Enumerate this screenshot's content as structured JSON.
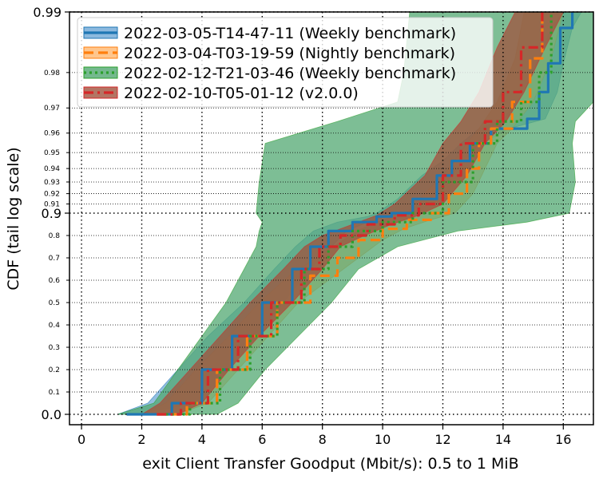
{
  "chart_data": {
    "type": "line",
    "xlabel": "exit Client Transfer Goodput (Mbit/s): 0.5 to 1 MiB",
    "ylabel": "CDF (tail log scale)",
    "xlim": [
      -0.4,
      17
    ],
    "xticks": [
      0,
      2,
      4,
      6,
      8,
      10,
      12,
      14,
      16
    ],
    "xtick_labels": [
      "0",
      "2",
      "4",
      "6",
      "8",
      "10",
      "12",
      "14",
      "16"
    ],
    "y_scale": "tail-log",
    "ylim": [
      -0.03,
      0.99
    ],
    "yticks_major": [
      0.0,
      0.9,
      0.99
    ],
    "yticks_major_labels": [
      "0.0",
      "0.9",
      "0.99"
    ],
    "yticks_minor": [
      0.1,
      0.2,
      0.3,
      0.4,
      0.5,
      0.6,
      0.7,
      0.8,
      0.91,
      0.92,
      0.93,
      0.94,
      0.95,
      0.96,
      0.97,
      0.98
    ],
    "yticks_minor_labels": [
      "0.1",
      "0.2",
      "0.3",
      "0.4",
      "0.5",
      "0.6",
      "0.7",
      "0.8",
      "0.91",
      "0.92",
      "0.93",
      "0.94",
      "0.95",
      "0.96",
      "0.97",
      "0.98"
    ],
    "grid": true,
    "legend_position": "top-left",
    "series": [
      {
        "name": "2022-03-05-T14-47-11 (Weekly benchmark)",
        "color": "#1f77b4",
        "dash": "solid",
        "points": [
          [
            1.5,
            0.0
          ],
          [
            3.0,
            0.05
          ],
          [
            4.0,
            0.2
          ],
          [
            5.0,
            0.35
          ],
          [
            6.0,
            0.5
          ],
          [
            7.0,
            0.65
          ],
          [
            7.6,
            0.75
          ],
          [
            8.2,
            0.82
          ],
          [
            9.0,
            0.86
          ],
          [
            9.8,
            0.885
          ],
          [
            10.3,
            0.9
          ],
          [
            11.0,
            0.915
          ],
          [
            11.8,
            0.935
          ],
          [
            12.3,
            0.945
          ],
          [
            12.9,
            0.955
          ],
          [
            13.6,
            0.962
          ],
          [
            14.8,
            0.966
          ],
          [
            15.2,
            0.975
          ],
          [
            15.5,
            0.982
          ],
          [
            15.9,
            0.988
          ],
          [
            16.3,
            0.99
          ]
        ],
        "band_upper": [
          [
            1.2,
            0.0
          ],
          [
            2.2,
            0.05
          ],
          [
            3.2,
            0.2
          ],
          [
            4.2,
            0.35
          ],
          [
            5.4,
            0.5
          ],
          [
            6.4,
            0.65
          ],
          [
            7.1,
            0.75
          ],
          [
            7.7,
            0.82
          ],
          [
            8.5,
            0.86
          ],
          [
            9.5,
            0.885
          ],
          [
            9.8,
            0.9
          ],
          [
            10.5,
            0.915
          ],
          [
            11.3,
            0.935
          ],
          [
            12.0,
            0.945
          ],
          [
            12.6,
            0.955
          ],
          [
            13.2,
            0.962
          ],
          [
            14.0,
            0.966
          ],
          [
            14.7,
            0.975
          ],
          [
            15.1,
            0.982
          ],
          [
            15.6,
            0.988
          ],
          [
            16.0,
            0.99
          ]
        ],
        "band_lower": [
          [
            1.8,
            0.0
          ],
          [
            3.8,
            0.05
          ],
          [
            4.9,
            0.2
          ],
          [
            5.8,
            0.35
          ],
          [
            6.7,
            0.5
          ],
          [
            7.6,
            0.65
          ],
          [
            8.3,
            0.75
          ],
          [
            8.8,
            0.82
          ],
          [
            9.5,
            0.86
          ],
          [
            10.2,
            0.885
          ],
          [
            10.8,
            0.9
          ],
          [
            11.6,
            0.915
          ],
          [
            12.3,
            0.935
          ],
          [
            12.7,
            0.945
          ],
          [
            13.3,
            0.955
          ],
          [
            14.2,
            0.962
          ],
          [
            15.4,
            0.966
          ],
          [
            15.8,
            0.975
          ],
          [
            16.0,
            0.982
          ],
          [
            16.3,
            0.988
          ],
          [
            16.6,
            0.99
          ]
        ]
      },
      {
        "name": "2022-03-04-T03-19-59 (Nightly benchmark)",
        "color": "#ff7f0e",
        "dash": "dashed",
        "points": [
          [
            2.5,
            0.0
          ],
          [
            3.5,
            0.05
          ],
          [
            4.5,
            0.2
          ],
          [
            5.5,
            0.35
          ],
          [
            6.5,
            0.5
          ],
          [
            7.6,
            0.62
          ],
          [
            8.5,
            0.7
          ],
          [
            9.2,
            0.78
          ],
          [
            10.0,
            0.83
          ],
          [
            10.8,
            0.87
          ],
          [
            11.6,
            0.9
          ],
          [
            12.2,
            0.92
          ],
          [
            12.8,
            0.94
          ],
          [
            13.2,
            0.955
          ],
          [
            13.6,
            0.962
          ],
          [
            14.3,
            0.972
          ],
          [
            14.9,
            0.983
          ],
          [
            15.3,
            0.99
          ]
        ],
        "band_upper": [
          [
            2.0,
            0.0
          ],
          [
            2.8,
            0.05
          ],
          [
            3.8,
            0.2
          ],
          [
            4.9,
            0.35
          ],
          [
            5.9,
            0.5
          ],
          [
            6.9,
            0.62
          ],
          [
            7.8,
            0.7
          ],
          [
            8.7,
            0.78
          ],
          [
            9.3,
            0.83
          ],
          [
            10.0,
            0.87
          ],
          [
            10.8,
            0.9
          ],
          [
            11.4,
            0.92
          ],
          [
            12.2,
            0.94
          ],
          [
            12.8,
            0.955
          ],
          [
            13.2,
            0.962
          ],
          [
            13.8,
            0.972
          ],
          [
            14.4,
            0.983
          ],
          [
            14.7,
            0.99
          ]
        ],
        "band_lower": [
          [
            3.2,
            0.0
          ],
          [
            4.2,
            0.05
          ],
          [
            5.2,
            0.2
          ],
          [
            6.2,
            0.35
          ],
          [
            7.2,
            0.5
          ],
          [
            8.4,
            0.62
          ],
          [
            9.2,
            0.7
          ],
          [
            10.0,
            0.78
          ],
          [
            10.7,
            0.83
          ],
          [
            11.6,
            0.87
          ],
          [
            12.4,
            0.9
          ],
          [
            13.0,
            0.92
          ],
          [
            13.4,
            0.94
          ],
          [
            13.8,
            0.955
          ],
          [
            14.3,
            0.962
          ],
          [
            15.0,
            0.972
          ],
          [
            15.6,
            0.983
          ],
          [
            16.0,
            0.99
          ]
        ]
      },
      {
        "name": "2022-02-12-T21-03-46 (Weekly benchmark)",
        "color": "#2ca02c",
        "dash": "dotted",
        "points": [
          [
            2.8,
            0.0
          ],
          [
            3.6,
            0.05
          ],
          [
            4.6,
            0.2
          ],
          [
            5.6,
            0.35
          ],
          [
            6.5,
            0.5
          ],
          [
            7.4,
            0.65
          ],
          [
            8.2,
            0.75
          ],
          [
            9.0,
            0.82
          ],
          [
            10.0,
            0.86
          ],
          [
            11.0,
            0.9
          ],
          [
            12.0,
            0.93
          ],
          [
            13.0,
            0.955
          ],
          [
            13.8,
            0.965
          ],
          [
            14.6,
            0.972
          ],
          [
            15.2,
            0.98
          ],
          [
            15.6,
            0.99
          ]
        ],
        "band_upper": [
          [
            1.2,
            0.0
          ],
          [
            2.4,
            0.05
          ],
          [
            3.2,
            0.2
          ],
          [
            4.0,
            0.35
          ],
          [
            4.8,
            0.5
          ],
          [
            5.4,
            0.65
          ],
          [
            5.8,
            0.75
          ],
          [
            5.9,
            0.82
          ],
          [
            6.0,
            0.86
          ],
          [
            5.8,
            0.9
          ],
          [
            5.9,
            0.93
          ],
          [
            6.1,
            0.955
          ],
          [
            8.5,
            0.965
          ],
          [
            10.5,
            0.972
          ],
          [
            10.7,
            0.98
          ],
          [
            10.9,
            0.99
          ]
        ],
        "band_lower": [
          [
            4.5,
            0.0
          ],
          [
            5.2,
            0.05
          ],
          [
            6.1,
            0.2
          ],
          [
            7.2,
            0.35
          ],
          [
            8.3,
            0.5
          ],
          [
            9.2,
            0.65
          ],
          [
            10.5,
            0.75
          ],
          [
            12.5,
            0.82
          ],
          [
            14.8,
            0.86
          ],
          [
            16.2,
            0.9
          ],
          [
            16.4,
            0.93
          ],
          [
            16.3,
            0.955
          ],
          [
            16.4,
            0.965
          ],
          [
            17.0,
            0.972
          ],
          [
            17.0,
            0.98
          ],
          [
            17.0,
            0.99
          ]
        ]
      },
      {
        "name": "2022-02-10-T05-01-12 (v2.0.0)",
        "color": "#d62728",
        "dash": "dashdot",
        "points": [
          [
            2.5,
            0.0
          ],
          [
            3.3,
            0.05
          ],
          [
            4.2,
            0.2
          ],
          [
            5.2,
            0.35
          ],
          [
            6.3,
            0.5
          ],
          [
            7.3,
            0.65
          ],
          [
            7.9,
            0.75
          ],
          [
            8.6,
            0.8
          ],
          [
            9.5,
            0.85
          ],
          [
            10.4,
            0.89
          ],
          [
            11.2,
            0.91
          ],
          [
            12.0,
            0.935
          ],
          [
            12.6,
            0.955
          ],
          [
            13.4,
            0.965
          ],
          [
            14.0,
            0.975
          ],
          [
            14.6,
            0.985
          ],
          [
            15.3,
            0.99
          ]
        ],
        "band_upper": [
          [
            2.0,
            0.0
          ],
          [
            2.6,
            0.05
          ],
          [
            3.6,
            0.2
          ],
          [
            4.6,
            0.35
          ],
          [
            5.6,
            0.5
          ],
          [
            6.7,
            0.65
          ],
          [
            7.4,
            0.75
          ],
          [
            8.0,
            0.8
          ],
          [
            9.0,
            0.85
          ],
          [
            9.8,
            0.89
          ],
          [
            10.4,
            0.91
          ],
          [
            11.4,
            0.935
          ],
          [
            12.0,
            0.955
          ],
          [
            12.6,
            0.965
          ],
          [
            13.2,
            0.975
          ],
          [
            13.8,
            0.985
          ],
          [
            14.4,
            0.99
          ]
        ],
        "band_lower": [
          [
            3.2,
            0.0
          ],
          [
            4.0,
            0.05
          ],
          [
            4.9,
            0.2
          ],
          [
            5.9,
            0.35
          ],
          [
            7.0,
            0.5
          ],
          [
            8.0,
            0.65
          ],
          [
            8.6,
            0.75
          ],
          [
            9.4,
            0.8
          ],
          [
            10.3,
            0.85
          ],
          [
            11.2,
            0.89
          ],
          [
            12.0,
            0.91
          ],
          [
            12.8,
            0.935
          ],
          [
            13.4,
            0.955
          ],
          [
            14.1,
            0.965
          ],
          [
            14.7,
            0.975
          ],
          [
            15.4,
            0.985
          ],
          [
            16.0,
            0.99
          ]
        ]
      }
    ]
  }
}
